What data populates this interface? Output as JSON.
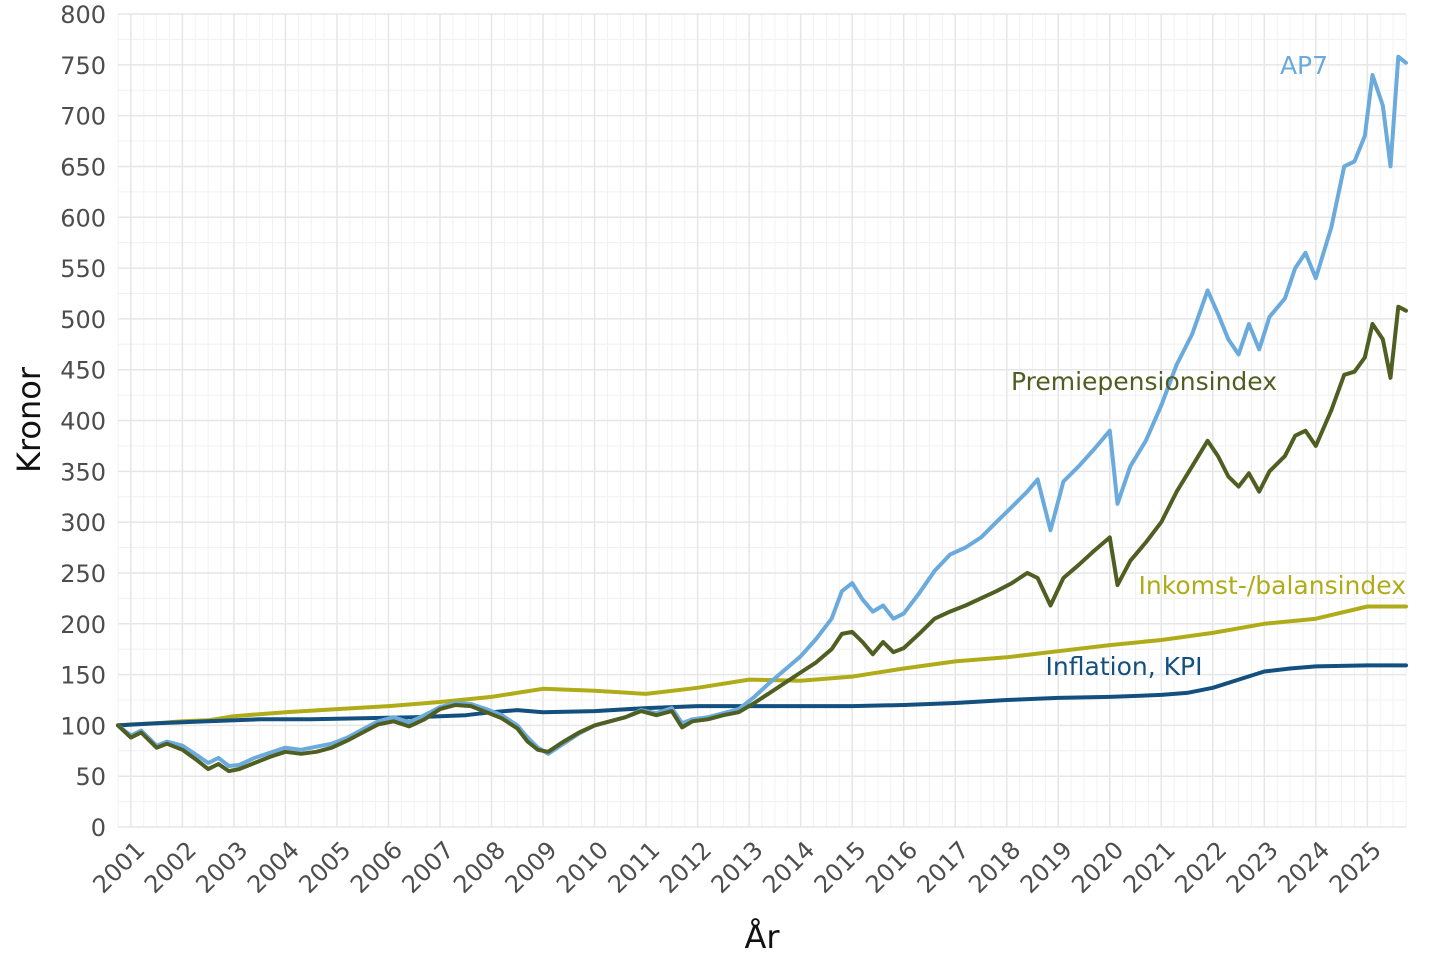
{
  "chart_data": {
    "type": "line",
    "xlabel": "År",
    "ylabel": "Kronor",
    "ylim": [
      0,
      800
    ],
    "y_ticks": [
      0,
      50,
      100,
      150,
      200,
      250,
      300,
      350,
      400,
      450,
      500,
      550,
      600,
      650,
      700,
      750,
      800
    ],
    "xlim": [
      2000.75,
      2025.75
    ],
    "x_tick_labels": [
      "2001",
      "2002",
      "2003",
      "2004",
      "2005",
      "2006",
      "2007",
      "2008",
      "2009",
      "2010",
      "2011",
      "2012",
      "2013",
      "2014",
      "2015",
      "2016",
      "2017",
      "2018",
      "2019",
      "2020",
      "2021",
      "2022",
      "2023",
      "2024",
      "2025"
    ],
    "grid": true,
    "legend": "direct labels",
    "series": [
      {
        "name": "AP7",
        "color": "#6aaadc",
        "points": [
          [
            2000.75,
            100
          ],
          [
            2001.0,
            90
          ],
          [
            2001.2,
            95
          ],
          [
            2001.5,
            80
          ],
          [
            2001.7,
            84
          ],
          [
            2002.0,
            80
          ],
          [
            2002.3,
            70
          ],
          [
            2002.5,
            63
          ],
          [
            2002.7,
            68
          ],
          [
            2002.9,
            60
          ],
          [
            2003.1,
            61
          ],
          [
            2003.4,
            68
          ],
          [
            2003.7,
            73
          ],
          [
            2004.0,
            78
          ],
          [
            2004.3,
            76
          ],
          [
            2004.6,
            79
          ],
          [
            2004.9,
            82
          ],
          [
            2005.2,
            88
          ],
          [
            2005.5,
            96
          ],
          [
            2005.8,
            104
          ],
          [
            2006.1,
            108
          ],
          [
            2006.4,
            103
          ],
          [
            2006.7,
            110
          ],
          [
            2007.0,
            118
          ],
          [
            2007.3,
            122
          ],
          [
            2007.6,
            121
          ],
          [
            2007.9,
            116
          ],
          [
            2008.2,
            110
          ],
          [
            2008.5,
            100
          ],
          [
            2008.7,
            88
          ],
          [
            2008.9,
            78
          ],
          [
            2009.1,
            72
          ],
          [
            2009.4,
            82
          ],
          [
            2009.7,
            92
          ],
          [
            2010.0,
            100
          ],
          [
            2010.3,
            104
          ],
          [
            2010.6,
            108
          ],
          [
            2010.9,
            115
          ],
          [
            2011.2,
            112
          ],
          [
            2011.5,
            117
          ],
          [
            2011.7,
            102
          ],
          [
            2011.9,
            106
          ],
          [
            2012.2,
            108
          ],
          [
            2012.5,
            112
          ],
          [
            2012.8,
            116
          ],
          [
            2013.1,
            128
          ],
          [
            2013.4,
            142
          ],
          [
            2013.7,
            155
          ],
          [
            2014.0,
            168
          ],
          [
            2014.3,
            185
          ],
          [
            2014.6,
            205
          ],
          [
            2014.8,
            232
          ],
          [
            2015.0,
            240
          ],
          [
            2015.2,
            224
          ],
          [
            2015.4,
            212
          ],
          [
            2015.6,
            218
          ],
          [
            2015.8,
            205
          ],
          [
            2016.0,
            210
          ],
          [
            2016.3,
            230
          ],
          [
            2016.6,
            252
          ],
          [
            2016.9,
            268
          ],
          [
            2017.2,
            275
          ],
          [
            2017.5,
            285
          ],
          [
            2017.8,
            300
          ],
          [
            2018.1,
            315
          ],
          [
            2018.4,
            330
          ],
          [
            2018.6,
            342
          ],
          [
            2018.85,
            292
          ],
          [
            2019.1,
            340
          ],
          [
            2019.4,
            355
          ],
          [
            2019.7,
            372
          ],
          [
            2020.0,
            390
          ],
          [
            2020.15,
            318
          ],
          [
            2020.4,
            355
          ],
          [
            2020.7,
            380
          ],
          [
            2021.0,
            415
          ],
          [
            2021.3,
            455
          ],
          [
            2021.6,
            485
          ],
          [
            2021.9,
            528
          ],
          [
            2022.1,
            505
          ],
          [
            2022.3,
            480
          ],
          [
            2022.5,
            465
          ],
          [
            2022.7,
            495
          ],
          [
            2022.9,
            470
          ],
          [
            2023.1,
            502
          ],
          [
            2023.4,
            520
          ],
          [
            2023.6,
            550
          ],
          [
            2023.8,
            565
          ],
          [
            2024.0,
            540
          ],
          [
            2024.3,
            590
          ],
          [
            2024.55,
            650
          ],
          [
            2024.75,
            655
          ],
          [
            2024.95,
            680
          ],
          [
            2025.1,
            740
          ],
          [
            2025.3,
            710
          ],
          [
            2025.45,
            650
          ],
          [
            2025.6,
            758
          ],
          [
            2025.75,
            752
          ]
        ]
      },
      {
        "name": "Premiepensionsindex",
        "color": "#4f5f22",
        "points": [
          [
            2000.75,
            100
          ],
          [
            2001.0,
            88
          ],
          [
            2001.2,
            93
          ],
          [
            2001.5,
            78
          ],
          [
            2001.7,
            82
          ],
          [
            2002.0,
            76
          ],
          [
            2002.3,
            65
          ],
          [
            2002.5,
            57
          ],
          [
            2002.7,
            62
          ],
          [
            2002.9,
            55
          ],
          [
            2003.1,
            57
          ],
          [
            2003.4,
            63
          ],
          [
            2003.7,
            69
          ],
          [
            2004.0,
            74
          ],
          [
            2004.3,
            72
          ],
          [
            2004.6,
            74
          ],
          [
            2004.9,
            78
          ],
          [
            2005.2,
            85
          ],
          [
            2005.5,
            93
          ],
          [
            2005.8,
            101
          ],
          [
            2006.1,
            104
          ],
          [
            2006.4,
            99
          ],
          [
            2006.7,
            106
          ],
          [
            2007.0,
            116
          ],
          [
            2007.3,
            120
          ],
          [
            2007.6,
            119
          ],
          [
            2007.9,
            113
          ],
          [
            2008.2,
            107
          ],
          [
            2008.5,
            97
          ],
          [
            2008.7,
            84
          ],
          [
            2008.9,
            76
          ],
          [
            2009.1,
            74
          ],
          [
            2009.4,
            84
          ],
          [
            2009.7,
            93
          ],
          [
            2010.0,
            100
          ],
          [
            2010.3,
            104
          ],
          [
            2010.6,
            108
          ],
          [
            2010.9,
            114
          ],
          [
            2011.2,
            110
          ],
          [
            2011.5,
            114
          ],
          [
            2011.7,
            98
          ],
          [
            2011.9,
            104
          ],
          [
            2012.2,
            106
          ],
          [
            2012.5,
            110
          ],
          [
            2012.8,
            113
          ],
          [
            2013.1,
            122
          ],
          [
            2013.4,
            132
          ],
          [
            2013.7,
            142
          ],
          [
            2014.0,
            152
          ],
          [
            2014.3,
            162
          ],
          [
            2014.6,
            175
          ],
          [
            2014.8,
            190
          ],
          [
            2015.0,
            192
          ],
          [
            2015.2,
            182
          ],
          [
            2015.4,
            170
          ],
          [
            2015.6,
            182
          ],
          [
            2015.8,
            172
          ],
          [
            2016.0,
            176
          ],
          [
            2016.3,
            190
          ],
          [
            2016.6,
            205
          ],
          [
            2016.9,
            212
          ],
          [
            2017.2,
            218
          ],
          [
            2017.5,
            225
          ],
          [
            2017.8,
            232
          ],
          [
            2018.1,
            240
          ],
          [
            2018.4,
            250
          ],
          [
            2018.6,
            245
          ],
          [
            2018.85,
            218
          ],
          [
            2019.1,
            245
          ],
          [
            2019.4,
            258
          ],
          [
            2019.7,
            272
          ],
          [
            2020.0,
            285
          ],
          [
            2020.15,
            238
          ],
          [
            2020.4,
            262
          ],
          [
            2020.7,
            280
          ],
          [
            2021.0,
            300
          ],
          [
            2021.3,
            330
          ],
          [
            2021.6,
            355
          ],
          [
            2021.9,
            380
          ],
          [
            2022.1,
            365
          ],
          [
            2022.3,
            345
          ],
          [
            2022.5,
            335
          ],
          [
            2022.7,
            348
          ],
          [
            2022.9,
            330
          ],
          [
            2023.1,
            350
          ],
          [
            2023.4,
            365
          ],
          [
            2023.6,
            385
          ],
          [
            2023.8,
            390
          ],
          [
            2024.0,
            375
          ],
          [
            2024.3,
            410
          ],
          [
            2024.55,
            445
          ],
          [
            2024.75,
            448
          ],
          [
            2024.95,
            462
          ],
          [
            2025.1,
            495
          ],
          [
            2025.3,
            480
          ],
          [
            2025.45,
            442
          ],
          [
            2025.6,
            512
          ],
          [
            2025.75,
            508
          ]
        ]
      },
      {
        "name": "Inkomst-/balansindex",
        "color": "#b0ac19",
        "points": [
          [
            2000.75,
            100
          ],
          [
            2001.0,
            101
          ],
          [
            2001.5,
            102
          ],
          [
            2002.0,
            104
          ],
          [
            2002.5,
            105
          ],
          [
            2003.0,
            109
          ],
          [
            2004.0,
            113
          ],
          [
            2005.0,
            116
          ],
          [
            2006.0,
            119
          ],
          [
            2007.0,
            123
          ],
          [
            2008.0,
            128
          ],
          [
            2009.0,
            136
          ],
          [
            2010.0,
            134
          ],
          [
            2011.0,
            131
          ],
          [
            2012.0,
            137
          ],
          [
            2013.0,
            145
          ],
          [
            2014.0,
            144
          ],
          [
            2015.0,
            148
          ],
          [
            2016.0,
            156
          ],
          [
            2017.0,
            163
          ],
          [
            2018.0,
            167
          ],
          [
            2019.0,
            173
          ],
          [
            2020.0,
            179
          ],
          [
            2021.0,
            184
          ],
          [
            2022.0,
            191
          ],
          [
            2023.0,
            200
          ],
          [
            2024.0,
            205
          ],
          [
            2025.0,
            217
          ],
          [
            2025.75,
            217
          ]
        ]
      },
      {
        "name": "Inflation, KPI",
        "color": "#13507f",
        "points": [
          [
            2000.75,
            100
          ],
          [
            2001.5,
            102
          ],
          [
            2002.5,
            104
          ],
          [
            2003.5,
            106
          ],
          [
            2004.5,
            106
          ],
          [
            2005.5,
            107
          ],
          [
            2006.5,
            108
          ],
          [
            2007.5,
            110
          ],
          [
            2008.0,
            113
          ],
          [
            2008.5,
            115
          ],
          [
            2009.0,
            113
          ],
          [
            2010.0,
            114
          ],
          [
            2011.0,
            117
          ],
          [
            2012.0,
            119
          ],
          [
            2013.0,
            119
          ],
          [
            2014.0,
            119
          ],
          [
            2015.0,
            119
          ],
          [
            2016.0,
            120
          ],
          [
            2017.0,
            122
          ],
          [
            2018.0,
            125
          ],
          [
            2019.0,
            127
          ],
          [
            2020.0,
            128
          ],
          [
            2021.0,
            130
          ],
          [
            2021.5,
            132
          ],
          [
            2022.0,
            137
          ],
          [
            2022.5,
            145
          ],
          [
            2023.0,
            153
          ],
          [
            2023.5,
            156
          ],
          [
            2024.0,
            158
          ],
          [
            2025.0,
            159
          ],
          [
            2025.75,
            159
          ]
        ]
      }
    ]
  }
}
